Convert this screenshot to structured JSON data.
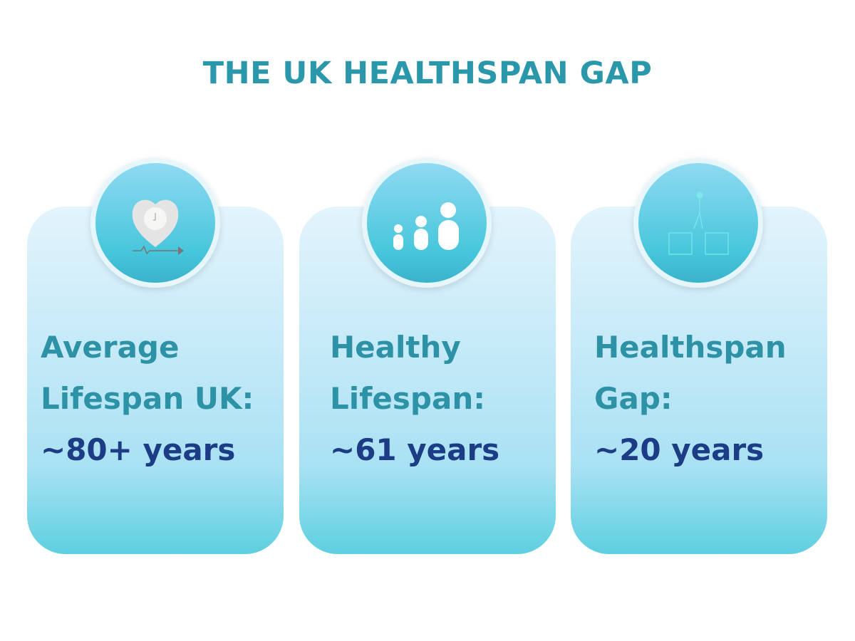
{
  "title": "THE UK HEALTHSPAN GAP",
  "cards": [
    {
      "icon": "heart-clock-icon",
      "line1": "Average",
      "line2": "Lifespan UK:",
      "value": "~80+ years"
    },
    {
      "icon": "family-icon",
      "line1": "Healthy",
      "line2": "Lifespan:",
      "value": "~61 years"
    },
    {
      "icon": "gap-walker-icon",
      "line1": "Healthspan",
      "line2": "Gap:",
      "value": "~20 years"
    }
  ],
  "colors": {
    "title": "#2b97aa",
    "label": "#2d92a6",
    "value": "#1d3c86",
    "card": "#c6eaf8"
  }
}
